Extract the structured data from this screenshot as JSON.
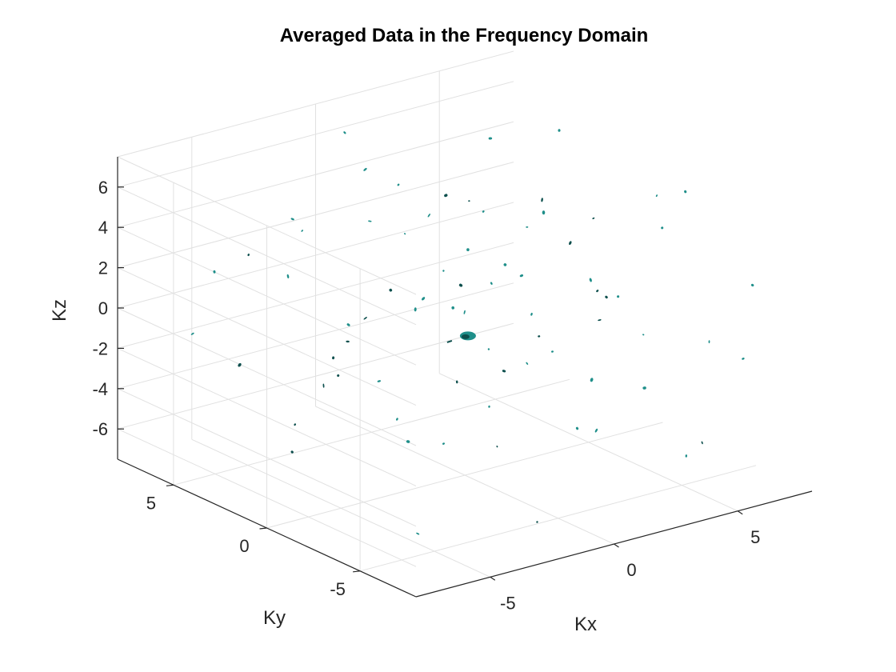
{
  "chart_data": {
    "type": "scatter3d",
    "title": "Averaged Data in the Frequency Domain",
    "xlabel": "Kx",
    "ylabel": "Ky",
    "zlabel": "Kz",
    "xlim": [
      -8,
      8
    ],
    "ylim": [
      -8,
      8
    ],
    "zlim": [
      -7.5,
      7.5
    ],
    "xticks": [
      -5,
      0,
      5
    ],
    "yticks": [
      -5,
      0,
      5
    ],
    "zticks": [
      -6,
      -4,
      -2,
      0,
      2,
      4,
      6
    ],
    "xtick_labels": [
      "-5",
      "0",
      "5"
    ],
    "ytick_labels": [
      "-5",
      "0",
      "5"
    ],
    "ztick_labels": [
      "-6",
      "-4",
      "-2",
      "0",
      "2",
      "4",
      "6"
    ],
    "grid": true,
    "view": "3d-default",
    "marker_color": "#1f8f8a",
    "marker_dark": "#0d4f4d",
    "central_blob": {
      "x": 0.2,
      "y": 0.1,
      "z": -0.7
    },
    "points": [
      [
        5.6,
        7.2,
        1.2
      ],
      [
        6.0,
        5.8,
        -1.5
      ],
      [
        3.2,
        -2.5,
        2.2
      ],
      [
        -6.4,
        3.1,
        4.2
      ],
      [
        -5.5,
        7.3,
        -1.8
      ],
      [
        4.5,
        -5.9,
        -5.5
      ],
      [
        1.2,
        -6.0,
        3.5
      ],
      [
        -3.0,
        5.5,
        1.0
      ],
      [
        7.0,
        -1.0,
        4.5
      ],
      [
        2.4,
        4.2,
        3.8
      ],
      [
        -1.5,
        -3.3,
        -2.2
      ],
      [
        0.5,
        7.1,
        6.3
      ],
      [
        -4.8,
        1.2,
        -2.0
      ],
      [
        6.5,
        -6.8,
        2.7
      ],
      [
        3.8,
        2.0,
        0.3
      ],
      [
        -2.2,
        -6.8,
        -6.2
      ],
      [
        5.0,
        3.3,
        -5.0
      ],
      [
        1.6,
        -2.1,
        5.9
      ],
      [
        -7.0,
        -2.5,
        0.8
      ],
      [
        0.0,
        4.6,
        -4.8
      ],
      [
        4.2,
        -4.0,
        -0.2
      ],
      [
        -3.6,
        -0.8,
        3.2
      ],
      [
        2.9,
        6.5,
        -3.0
      ],
      [
        -0.8,
        2.5,
        6.1
      ],
      [
        6.8,
        1.8,
        -2.8
      ],
      [
        -5.9,
        -4.2,
        -1.0
      ],
      [
        1.0,
        -4.7,
        -3.5
      ],
      [
        3.5,
        0.5,
        4.8
      ],
      [
        -1.9,
        6.2,
        2.6
      ],
      [
        5.3,
        -2.6,
        -3.8
      ],
      [
        -4.0,
        3.8,
        -5.3
      ],
      [
        0.7,
        -0.5,
        2.0
      ],
      [
        2.1,
        2.8,
        -1.3
      ],
      [
        -6.6,
        0.5,
        -4.4
      ],
      [
        4.8,
        5.0,
        5.5
      ],
      [
        -2.8,
        -5.0,
        1.8
      ],
      [
        6.2,
        -4.5,
        -6.0
      ],
      [
        -0.3,
        -7.2,
        0.4
      ],
      [
        3.0,
        -6.6,
        6.6
      ],
      [
        -3.3,
        1.9,
        -0.6
      ],
      [
        1.8,
        5.6,
        1.5
      ],
      [
        -5.0,
        -6.0,
        5.0
      ],
      [
        7.2,
        3.9,
        0.0
      ],
      [
        0.2,
        1.4,
        -6.6
      ],
      [
        -1.2,
        3.5,
        4.0
      ],
      [
        4.0,
        -1.8,
        1.1
      ],
      [
        -6.2,
        5.2,
        2.4
      ],
      [
        2.6,
        -3.6,
        -4.6
      ],
      [
        5.8,
        0.8,
        3.0
      ],
      [
        -4.4,
        -2.8,
        -3.2
      ],
      [
        0.9,
        0.2,
        5.2
      ],
      [
        3.3,
        4.8,
        -6.0
      ],
      [
        -2.5,
        -1.4,
        6.8
      ],
      [
        6.5,
        -3.2,
        5.8
      ],
      [
        -0.6,
        -2.9,
        -0.9
      ],
      [
        1.4,
        3.0,
        0.9
      ],
      [
        4.6,
        -7.0,
        0.6
      ],
      [
        -3.9,
        6.9,
        -3.7
      ],
      [
        2.2,
        -5.3,
        2.9
      ],
      [
        -5.3,
        2.2,
        6.0
      ],
      [
        0.4,
        -1.2,
        -5.7
      ],
      [
        5.1,
        6.6,
        -0.8
      ],
      [
        -1.0,
        0.9,
        1.2
      ],
      [
        3.9,
        1.2,
        -2.4
      ],
      [
        -6.8,
        -6.5,
        -5.4
      ],
      [
        7.1,
        -5.5,
        -1.7
      ],
      [
        -2.0,
        4.4,
        -2.9
      ],
      [
        1.1,
        6.8,
        4.4
      ],
      [
        4.4,
        2.5,
        2.3
      ],
      [
        -3.1,
        -3.9,
        4.6
      ],
      [
        0.6,
        -3.9,
        0.1
      ],
      [
        2.7,
        0.0,
        -0.4
      ],
      [
        -0.1,
        5.2,
        -1.9
      ],
      [
        6.0,
        2.9,
        6.4
      ],
      [
        -4.7,
        0.0,
        1.5
      ]
    ]
  }
}
